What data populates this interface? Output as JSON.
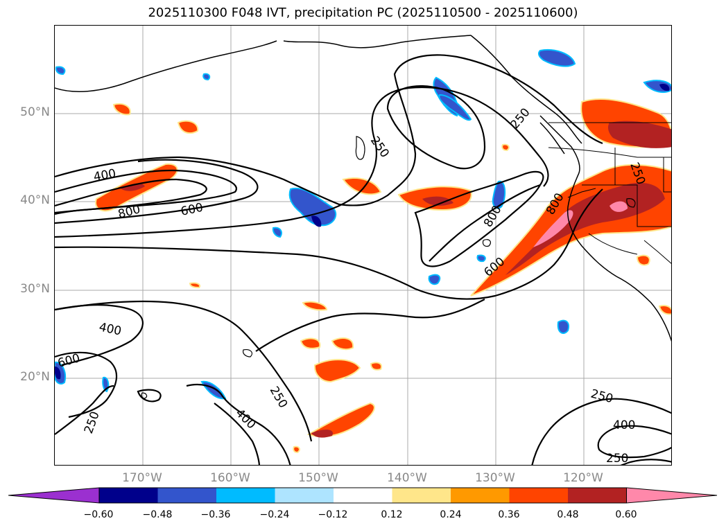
{
  "title": "2025110300 F048 IVT, precipitation PC (2025110500 - 2025110600)",
  "map": {
    "projection": "PlateCarree",
    "lon_range": [
      180,
      -110
    ],
    "lat_range": [
      10,
      60
    ],
    "grid": true,
    "lat_labels": [
      "50°N",
      "40°N",
      "30°N",
      "20°N"
    ],
    "lon_labels": [
      "170°W",
      "160°W",
      "150°W",
      "140°W",
      "130°W",
      "120°W"
    ],
    "ivt_contour_levels": [
      250,
      400,
      600,
      800
    ],
    "contour_labels": [
      "400",
      "800",
      "600",
      "250",
      "250",
      "800",
      "600",
      "800",
      "250",
      "400",
      "600",
      "250",
      "400",
      "250",
      "250",
      "400",
      "250"
    ]
  },
  "colorbar": {
    "ticks": [
      "−0.60",
      "−0.48",
      "−0.36",
      "−0.24",
      "−0.12",
      "0.12",
      "0.24",
      "0.36",
      "0.48",
      "0.60"
    ],
    "colors": [
      "#9b30d0",
      "#00008b",
      "#3355cc",
      "#00bbff",
      "#aee4ff",
      "#ffffff",
      "#ffe68a",
      "#ff9900",
      "#ff4400",
      "#b22222",
      "#ff88aa"
    ],
    "extend": "both"
  },
  "chart_data": {
    "type": "map",
    "title": "2025110300 F048 IVT, precipitation PC (2025110500 - 2025110600)",
    "contour_field": "IVT",
    "contour_levels": [
      250,
      400,
      600,
      800
    ],
    "shaded_field": "precipitation PC",
    "shaded_levels": [
      -0.6,
      -0.48,
      -0.36,
      -0.24,
      -0.12,
      0.12,
      0.24,
      0.36,
      0.48,
      0.6
    ],
    "xlim": [
      180,
      -110
    ],
    "ylim": [
      10,
      60
    ]
  }
}
